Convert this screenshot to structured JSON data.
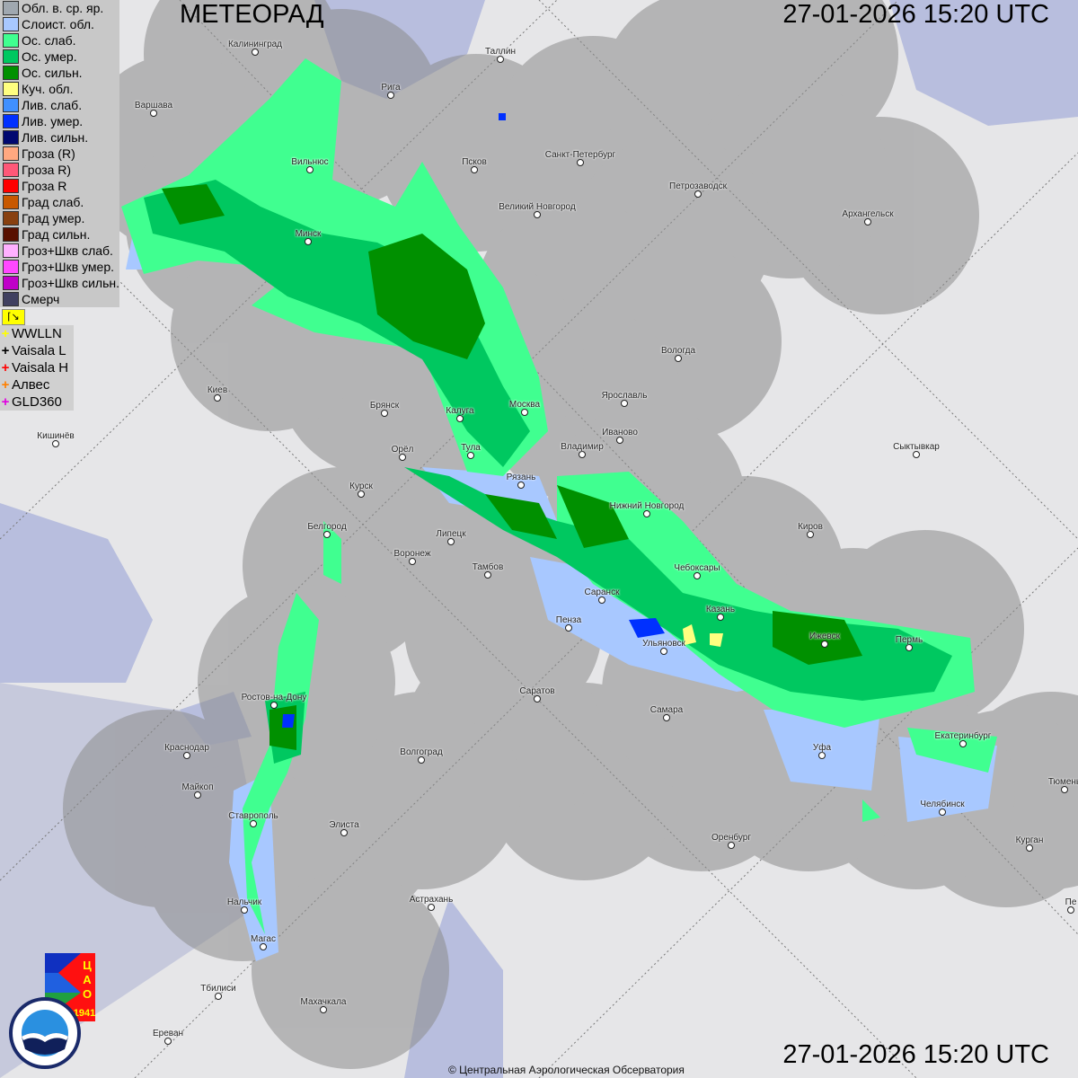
{
  "header": {
    "title": "МЕТЕОРАД",
    "timestamp": "27-01-2026  15:20 UTC"
  },
  "footer": {
    "timestamp": "27-01-2026  15:20 UTC",
    "copyright": "© Центральная Аэрологическая Обсерватория"
  },
  "legend": {
    "items": [
      {
        "label": "Обл. в. ср. яр.",
        "color": "#a0a8b0"
      },
      {
        "label": "Слоист. обл.",
        "color": "#a8c8ff"
      },
      {
        "label": "Ос. слаб.",
        "color": "#40ff90"
      },
      {
        "label": "Ос. умер.",
        "color": "#00c860"
      },
      {
        "label": "Ос. сильн.",
        "color": "#009000"
      },
      {
        "label": "Куч. обл.",
        "color": "#ffff80"
      },
      {
        "label": "Лив. слаб.",
        "color": "#4090ff"
      },
      {
        "label": "Лив. умер.",
        "color": "#0030ff"
      },
      {
        "label": "Лив. сильн.",
        "color": "#000870"
      },
      {
        "label": "Гроза (R)",
        "color": "#ffa880"
      },
      {
        "label": "Гроза R)",
        "color": "#ff5878"
      },
      {
        "label": "Гроза R",
        "color": "#ff0000"
      },
      {
        "label": "Град слаб.",
        "color": "#c85800"
      },
      {
        "label": "Град умер.",
        "color": "#884010"
      },
      {
        "label": "Град сильн.",
        "color": "#581000"
      },
      {
        "label": "Гроз+Шкв слаб.",
        "color": "#ffb0ff"
      },
      {
        "label": "Гроз+Шкв умер.",
        "color": "#ff48ff"
      },
      {
        "label": "Гроз+Шкв сильн.",
        "color": "#c000c8"
      },
      {
        "label": "Смерч",
        "color": "#404060"
      }
    ],
    "flag_icon": "flag-icon"
  },
  "lightning": [
    {
      "label": "WWLLN",
      "color": "#ffff00"
    },
    {
      "label": "Vaisala L",
      "color": "#000000"
    },
    {
      "label": "Vaisala H",
      "color": "#ff0000"
    },
    {
      "label": "Алвес",
      "color": "#ff8000"
    },
    {
      "label": "GLD360",
      "color": "#e000e0"
    }
  ],
  "cities": [
    "Калининград",
    "Таллин",
    "Рига",
    "Варшава",
    "Вильнюс",
    "Псков",
    "Санкт-Петербург",
    "Петрозаводск",
    "Великий Новгород",
    "Архангельск",
    "Минск",
    "Вологда",
    "Киев",
    "Ярославль",
    "Брянск",
    "Москва",
    "Калуга",
    "Иваново",
    "Кишинёв",
    "Орёл",
    "Тула",
    "Владимир",
    "Сыктывкар",
    "Рязань",
    "Курск",
    "Нижний Новгород",
    "Белгород",
    "Киров",
    "Липецк",
    "Воронеж",
    "Тамбов",
    "Чебоксары",
    "Саранск",
    "Казань",
    "Пенза",
    "Ижевск",
    "Пермь",
    "Ульяновск",
    "Ростов-на-Дону",
    "Саратов",
    "Самара",
    "Екатеринбург",
    "Уфа",
    "Краснодар",
    "Волгоград",
    "Майкоп",
    "Челябинск",
    "Тюмень",
    "Ставрополь",
    "Элиста",
    "Оренбург",
    "Курган",
    "Нальчик",
    "Астрахань",
    "Пе",
    "Магас",
    "Тбилиси",
    "Махачкала",
    "Ереван"
  ],
  "logos": {
    "cao": "ЦАО 1941",
    "roshydromet": "РОСГИДРОМЕТ ROSHYDROMET"
  }
}
